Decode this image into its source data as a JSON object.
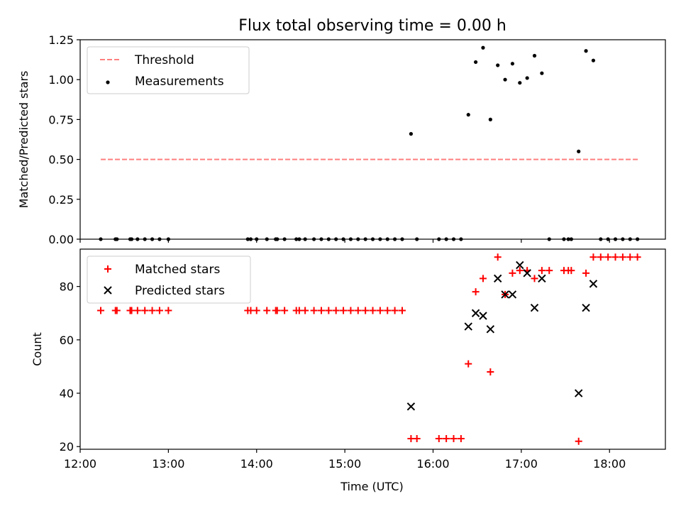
{
  "title": "Flux total observing time = 0.00 h",
  "colors": {
    "threshold": "#ff7f7f",
    "measurement": "#000000",
    "matched": "#ff0000",
    "predicted": "#000000"
  },
  "chart_data": [
    {
      "type": "scatter",
      "ylabel": "Matched/Predicted stars",
      "xlim": [
        "12:00",
        "18:38"
      ],
      "ylim": [
        0,
        1.25
      ],
      "yticks": [
        "0.00",
        "0.25",
        "0.50",
        "0.75",
        "1.00",
        "1.25"
      ],
      "legend_position": "upper-left",
      "grid": false,
      "series": [
        {
          "name": "Threshold",
          "type": "line",
          "style": "dashed",
          "x": [
            "12:14",
            "18:20"
          ],
          "y": [
            0.5,
            0.5
          ]
        },
        {
          "name": "Measurements",
          "type": "scatter",
          "marker": "dot",
          "points": [
            [
              "12:14",
              0
            ],
            [
              "12:24",
              0
            ],
            [
              "12:25",
              0
            ],
            [
              "12:34",
              0
            ],
            [
              "12:35",
              0
            ],
            [
              "12:39",
              0
            ],
            [
              "12:44",
              0
            ],
            [
              "12:49",
              0
            ],
            [
              "12:54",
              0
            ],
            [
              "13:00",
              0
            ],
            [
              "13:54",
              0
            ],
            [
              "13:56",
              0
            ],
            [
              "14:00",
              0
            ],
            [
              "14:07",
              0
            ],
            [
              "14:13",
              0
            ],
            [
              "14:14",
              0
            ],
            [
              "14:19",
              0
            ],
            [
              "14:27",
              0
            ],
            [
              "14:29",
              0
            ],
            [
              "14:33",
              0
            ],
            [
              "14:39",
              0
            ],
            [
              "14:44",
              0
            ],
            [
              "14:49",
              0
            ],
            [
              "14:54",
              0
            ],
            [
              "14:59",
              0
            ],
            [
              "15:04",
              0
            ],
            [
              "15:09",
              0
            ],
            [
              "15:14",
              0
            ],
            [
              "15:19",
              0
            ],
            [
              "15:24",
              0
            ],
            [
              "15:29",
              0
            ],
            [
              "15:34",
              0
            ],
            [
              "15:39",
              0
            ],
            [
              "15:45",
              0.66
            ],
            [
              "15:49",
              0
            ],
            [
              "16:04",
              0
            ],
            [
              "16:09",
              0
            ],
            [
              "16:14",
              0
            ],
            [
              "16:19",
              0
            ],
            [
              "16:24",
              0.78
            ],
            [
              "16:29",
              1.11
            ],
            [
              "16:34",
              1.2
            ],
            [
              "16:39",
              0.75
            ],
            [
              "16:44",
              1.09
            ],
            [
              "16:49",
              1.0
            ],
            [
              "16:54",
              1.1
            ],
            [
              "16:59",
              0.98
            ],
            [
              "17:04",
              1.01
            ],
            [
              "17:09",
              1.15
            ],
            [
              "17:14",
              1.04
            ],
            [
              "17:19",
              0
            ],
            [
              "17:29",
              0
            ],
            [
              "17:32",
              0
            ],
            [
              "17:34",
              0
            ],
            [
              "17:39",
              0.55
            ],
            [
              "17:44",
              1.18
            ],
            [
              "17:49",
              1.12
            ],
            [
              "17:54",
              0
            ],
            [
              "17:59",
              0
            ],
            [
              "18:04",
              0
            ],
            [
              "18:09",
              0
            ],
            [
              "18:14",
              0
            ],
            [
              "18:19",
              0
            ]
          ]
        }
      ]
    },
    {
      "type": "scatter",
      "xlabel": "Time (UTC)",
      "ylabel": "Count",
      "xlim": [
        "12:00",
        "18:38"
      ],
      "xticks": [
        "12:00",
        "13:00",
        "14:00",
        "15:00",
        "16:00",
        "17:00",
        "18:00"
      ],
      "ylim": [
        19,
        94
      ],
      "yticks": [
        "20",
        "40",
        "60",
        "80"
      ],
      "legend_position": "upper-left",
      "grid": false,
      "series": [
        {
          "name": "Matched stars",
          "type": "scatter",
          "marker": "plus",
          "points": [
            [
              "12:14",
              71
            ],
            [
              "12:24",
              71
            ],
            [
              "12:25",
              71
            ],
            [
              "12:34",
              71
            ],
            [
              "12:35",
              71
            ],
            [
              "12:39",
              71
            ],
            [
              "12:44",
              71
            ],
            [
              "12:49",
              71
            ],
            [
              "12:54",
              71
            ],
            [
              "13:00",
              71
            ],
            [
              "13:54",
              71
            ],
            [
              "13:56",
              71
            ],
            [
              "14:00",
              71
            ],
            [
              "14:07",
              71
            ],
            [
              "14:13",
              71
            ],
            [
              "14:14",
              71
            ],
            [
              "14:19",
              71
            ],
            [
              "14:27",
              71
            ],
            [
              "14:29",
              71
            ],
            [
              "14:33",
              71
            ],
            [
              "14:39",
              71
            ],
            [
              "14:44",
              71
            ],
            [
              "14:49",
              71
            ],
            [
              "14:54",
              71
            ],
            [
              "14:59",
              71
            ],
            [
              "15:04",
              71
            ],
            [
              "15:09",
              71
            ],
            [
              "15:14",
              71
            ],
            [
              "15:19",
              71
            ],
            [
              "15:24",
              71
            ],
            [
              "15:29",
              71
            ],
            [
              "15:34",
              71
            ],
            [
              "15:39",
              71
            ],
            [
              "15:45",
              23
            ],
            [
              "15:49",
              23
            ],
            [
              "16:04",
              23
            ],
            [
              "16:09",
              23
            ],
            [
              "16:14",
              23
            ],
            [
              "16:19",
              23
            ],
            [
              "16:24",
              51
            ],
            [
              "16:29",
              78
            ],
            [
              "16:34",
              83
            ],
            [
              "16:39",
              48
            ],
            [
              "16:44",
              91
            ],
            [
              "16:49",
              77
            ],
            [
              "16:54",
              85
            ],
            [
              "16:59",
              86
            ],
            [
              "17:04",
              86
            ],
            [
              "17:09",
              83
            ],
            [
              "17:14",
              86
            ],
            [
              "17:19",
              86
            ],
            [
              "17:29",
              86
            ],
            [
              "17:32",
              86
            ],
            [
              "17:34",
              86
            ],
            [
              "17:39",
              22
            ],
            [
              "17:44",
              85
            ],
            [
              "17:49",
              91
            ],
            [
              "17:54",
              91
            ],
            [
              "17:59",
              91
            ],
            [
              "18:04",
              91
            ],
            [
              "18:09",
              91
            ],
            [
              "18:14",
              91
            ],
            [
              "18:19",
              91
            ]
          ]
        },
        {
          "name": "Predicted stars",
          "type": "scatter",
          "marker": "x",
          "points": [
            [
              "15:45",
              35
            ],
            [
              "16:24",
              65
            ],
            [
              "16:29",
              70
            ],
            [
              "16:34",
              69
            ],
            [
              "16:39",
              64
            ],
            [
              "16:44",
              83
            ],
            [
              "16:49",
              77
            ],
            [
              "16:54",
              77
            ],
            [
              "16:59",
              88
            ],
            [
              "17:04",
              85
            ],
            [
              "17:09",
              72
            ],
            [
              "17:14",
              83
            ],
            [
              "17:39",
              40
            ],
            [
              "17:44",
              72
            ],
            [
              "17:49",
              81
            ]
          ]
        }
      ]
    }
  ]
}
